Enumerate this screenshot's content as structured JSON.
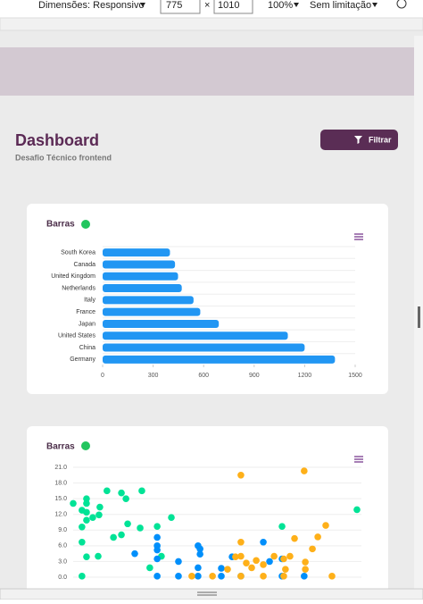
{
  "toolbar": {
    "dimensions": "Dimensões: Responsivo",
    "width": "775",
    "times": "×",
    "height": "1010",
    "zoom": "100%",
    "throttle": "Sem limitação"
  },
  "header": {
    "title": "Dashboard",
    "subtitle": "Desafio Técnico frontend",
    "button": "Filtrar"
  },
  "charts": [
    {
      "type": "bar",
      "title": "Barras",
      "color": "#2196f3",
      "categories": [
        "South Korea",
        "Canada",
        "United Kingdom",
        "Netherlands",
        "Italy",
        "France",
        "Japan",
        "United States",
        "China",
        "Germany"
      ],
      "values": [
        400,
        430,
        448,
        470,
        540,
        580,
        690,
        1100,
        1200,
        1380
      ],
      "xlim": [
        0,
        1500
      ],
      "xticks": [
        0,
        300,
        600,
        900,
        1200,
        1500
      ]
    },
    {
      "type": "scatter",
      "title": "Barras",
      "ylim": [
        0,
        21
      ],
      "yticks": [
        {
          "value": 0,
          "label": "0.0"
        },
        {
          "value": 3,
          "label": "3.0"
        },
        {
          "value": 6,
          "label": "6.0"
        },
        {
          "value": 9,
          "label": "9.0"
        },
        {
          "value": 12,
          "label": "12.0"
        },
        {
          "value": 15,
          "label": "15.0"
        },
        {
          "value": 18,
          "label": "18.0"
        },
        {
          "value": 21,
          "label": "21.0"
        }
      ],
      "xlim": [
        0,
        100
      ],
      "grid": true,
      "series": [
        {
          "color": "#00e396",
          "x": [
            0,
            4.7,
            4.7,
            3.1,
            4.7,
            6.9,
            4.7,
            9.4,
            11.9,
            17.0,
            18.6,
            24.2,
            9.1,
            3.1,
            14.2,
            17.0,
            19.2,
            23.6,
            29.6,
            34.6,
            3.1,
            4.7,
            8.8,
            27.0,
            31.1,
            73.6,
            100,
            3.1
          ],
          "values": [
            14.1,
            15.0,
            14.1,
            12.8,
            12.4,
            11.4,
            10.9,
            13.4,
            16.5,
            16.1,
            15.0,
            16.5,
            11.9,
            9.6,
            7.6,
            8.1,
            10.2,
            9.4,
            9.7,
            11.4,
            6.7,
            3.9,
            4.0,
            1.8,
            4.0,
            9.7,
            12.9,
            0.2
          ]
        },
        {
          "color": "#008ffb",
          "x": [
            29.6,
            29.6,
            29.6,
            21.7,
            29.6,
            37.1,
            44.0,
            44.7,
            44.0,
            52.2,
            56.0,
            67.0,
            69.2,
            73.6,
            29.6,
            37.1,
            44.0,
            52.2,
            59.1,
            73.6,
            81.4,
            44.7
          ],
          "values": [
            7.6,
            6.0,
            5.2,
            4.5,
            3.5,
            3.0,
            6.0,
            4.4,
            1.8,
            1.7,
            3.9,
            6.7,
            3.0,
            3.5,
            0.2,
            0.2,
            0.2,
            0.2,
            0.2,
            0.2,
            0.2,
            5.4
          ]
        },
        {
          "color": "#feb019",
          "x": [
            59.1,
            81.4,
            89.0,
            86.2,
            78.0,
            84.3,
            59.1,
            59.1,
            61.0,
            64.5,
            67.0,
            70.8,
            74.2,
            76.4,
            81.8,
            81.8,
            57.2,
            54.4,
            49.1,
            41.8,
            59.1,
            67.0,
            74.2,
            91.2,
            74.8,
            62.9
          ],
          "values": [
            19.5,
            20.3,
            9.9,
            7.7,
            7.4,
            5.4,
            6.7,
            4.0,
            2.7,
            3.2,
            2.4,
            4.0,
            3.5,
            4.0,
            2.9,
            1.5,
            3.9,
            1.5,
            0.2,
            0.2,
            0.2,
            0.2,
            0.2,
            0.2,
            1.5,
            1.8
          ]
        }
      ]
    }
  ]
}
